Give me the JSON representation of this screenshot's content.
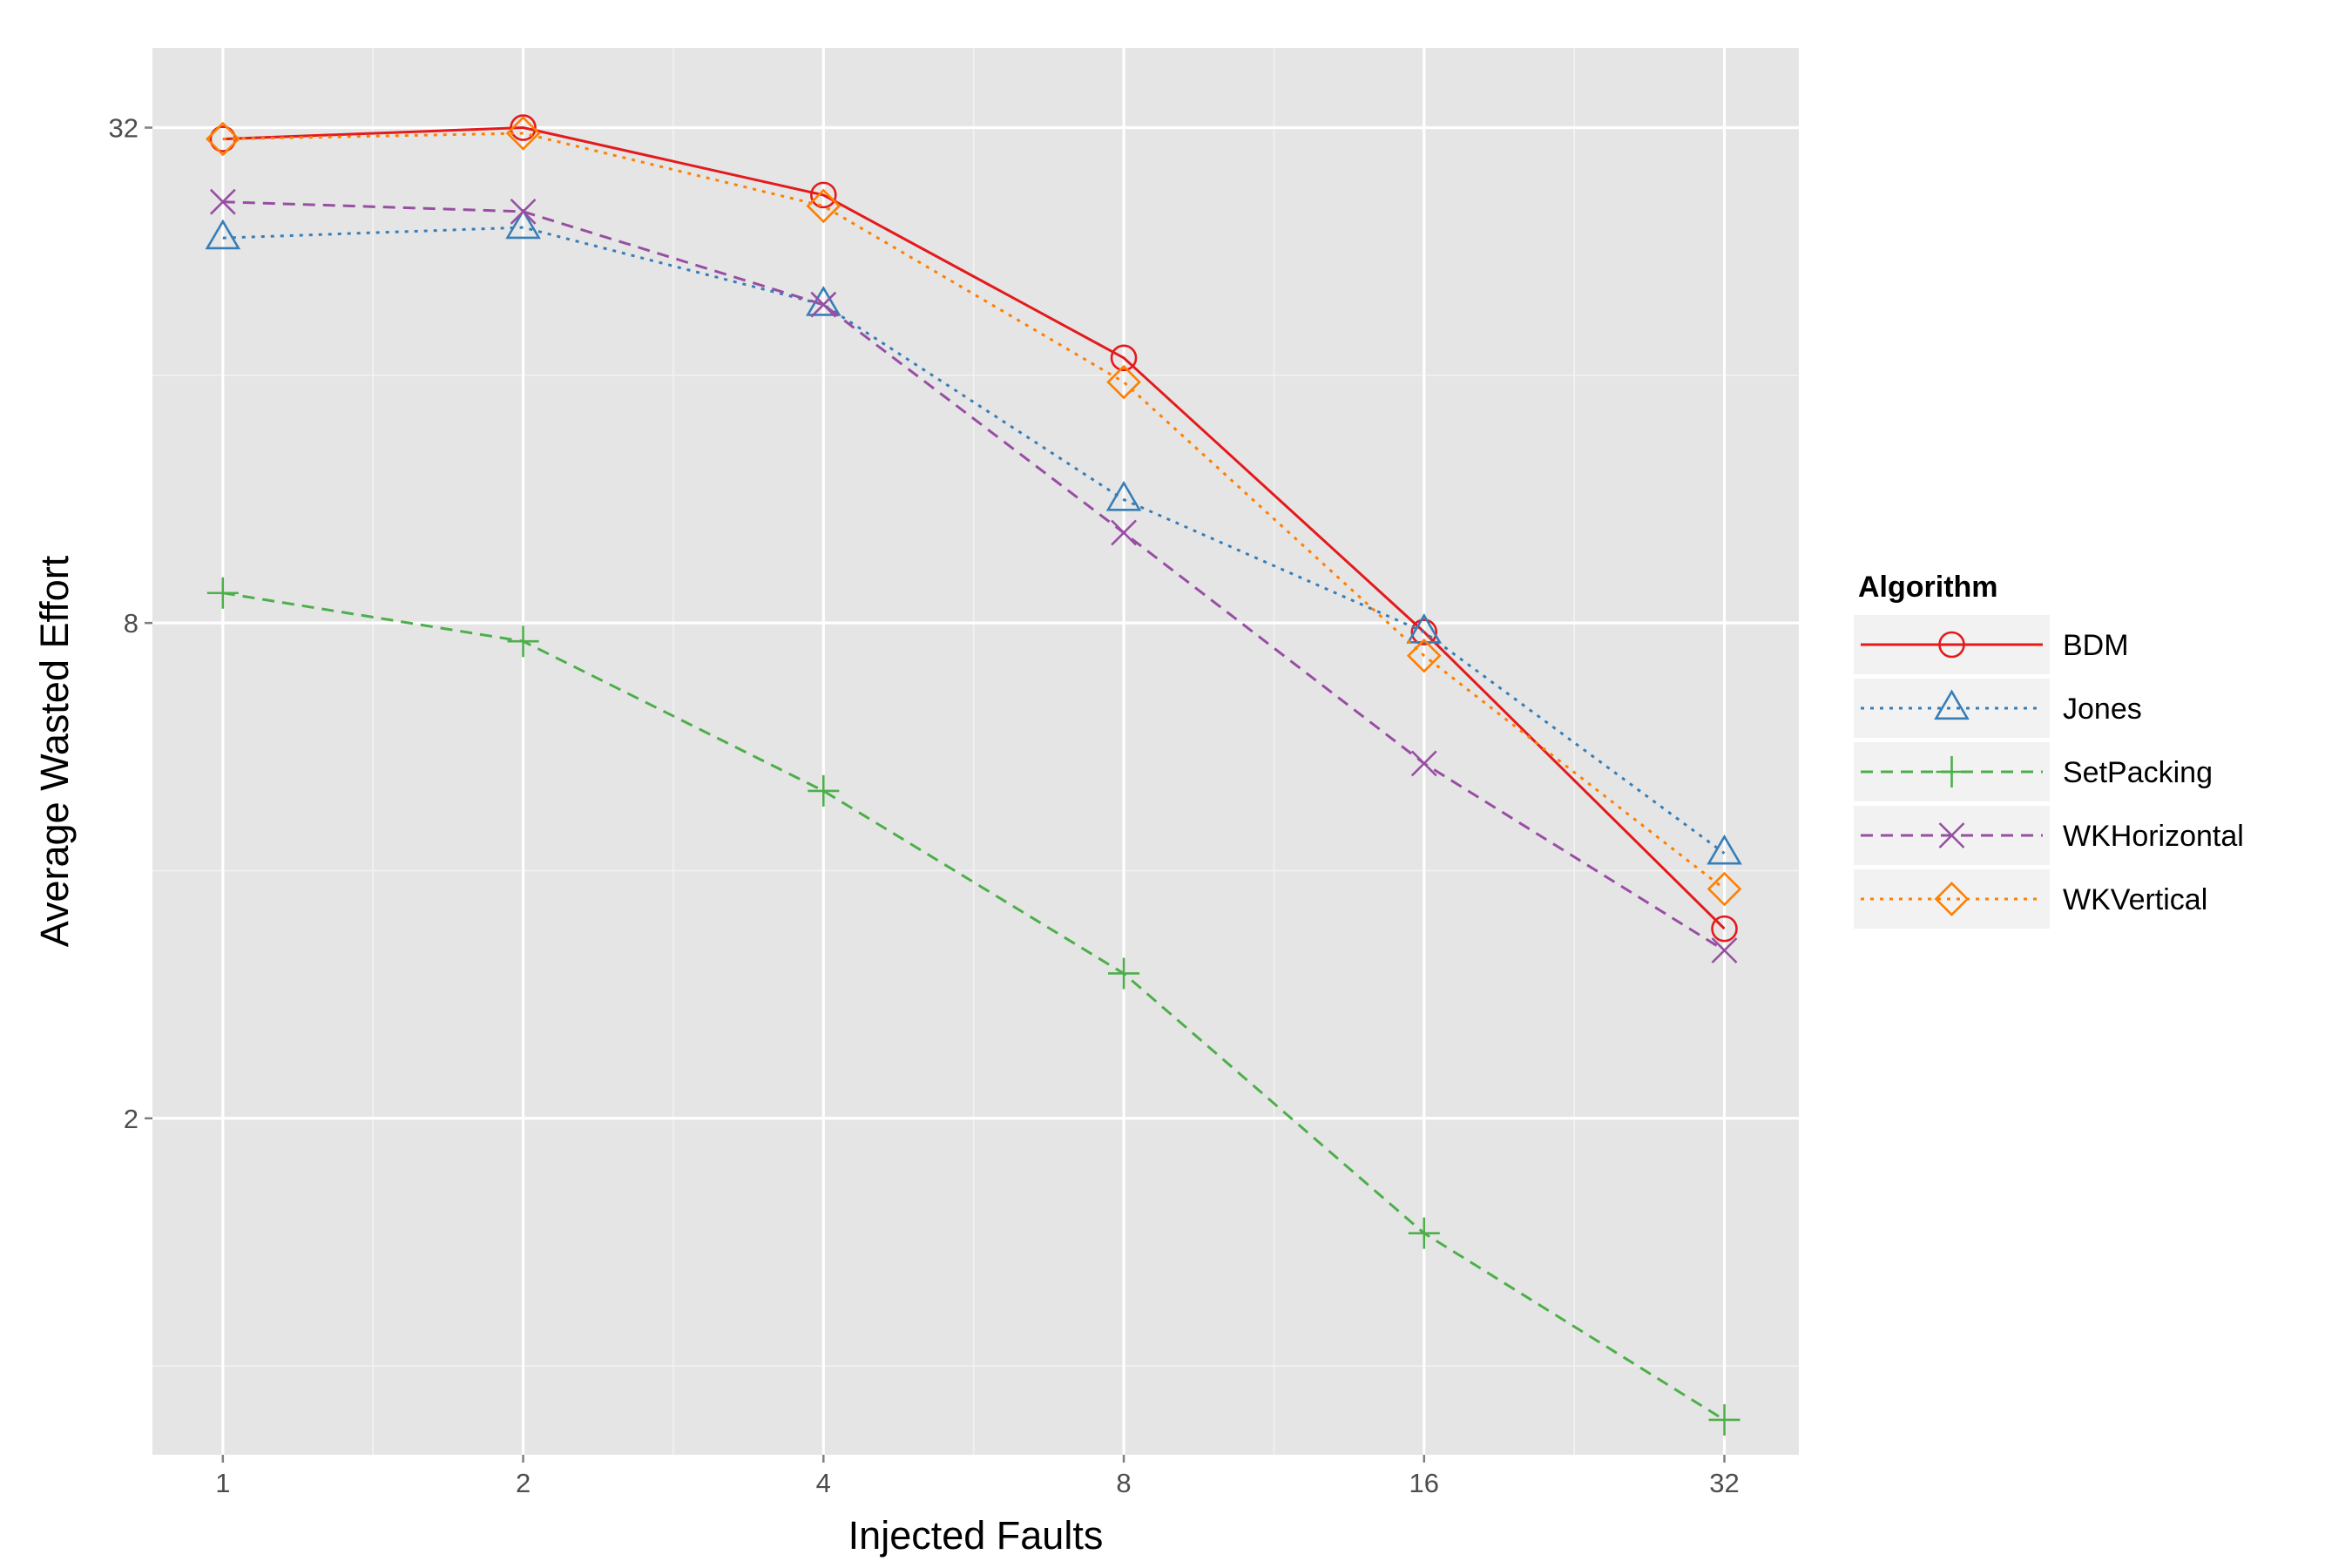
{
  "chart_data": {
    "type": "line",
    "title": "",
    "xlabel": "Injected Faults",
    "ylabel": "Average Wasted Effort",
    "x_scale": "log2",
    "y_scale": "log2",
    "x": [
      1,
      2,
      4,
      8,
      16,
      32
    ],
    "x_tick_labels": [
      "1",
      "2",
      "4",
      "8",
      "16",
      "32"
    ],
    "y_ticks": [
      2,
      8,
      32
    ],
    "y_tick_labels": [
      "2",
      "8",
      "32"
    ],
    "xlim": [
      0.85,
      38
    ],
    "ylim": [
      0.78,
      40
    ],
    "grid": true,
    "legend": {
      "title": "Algorithm",
      "position": "right"
    },
    "series": [
      {
        "name": "BDM",
        "color": "#E41A1C",
        "dash": "solid",
        "marker": "circle",
        "values": [
          31.0,
          32.0,
          26.5,
          16.8,
          7.8,
          3.4
        ]
      },
      {
        "name": "Jones",
        "color": "#377EB8",
        "dash": "dotted",
        "marker": "triangle",
        "values": [
          23.5,
          24.2,
          19.5,
          11.3,
          7.8,
          4.2
        ]
      },
      {
        "name": "SetPacking",
        "color": "#4DAF4A",
        "dash": "dashed",
        "marker": "plus",
        "values": [
          8.7,
          7.6,
          5.0,
          3.0,
          1.45,
          0.86
        ]
      },
      {
        "name": "WKHorizontal",
        "color": "#984EA3",
        "dash": "dashed",
        "marker": "cross",
        "values": [
          26.0,
          25.3,
          19.5,
          10.3,
          5.4,
          3.2
        ]
      },
      {
        "name": "WKVertical",
        "color": "#FF7F00",
        "dash": "dotted",
        "marker": "diamond",
        "values": [
          31.0,
          31.5,
          25.7,
          15.7,
          7.3,
          3.8
        ]
      }
    ]
  }
}
